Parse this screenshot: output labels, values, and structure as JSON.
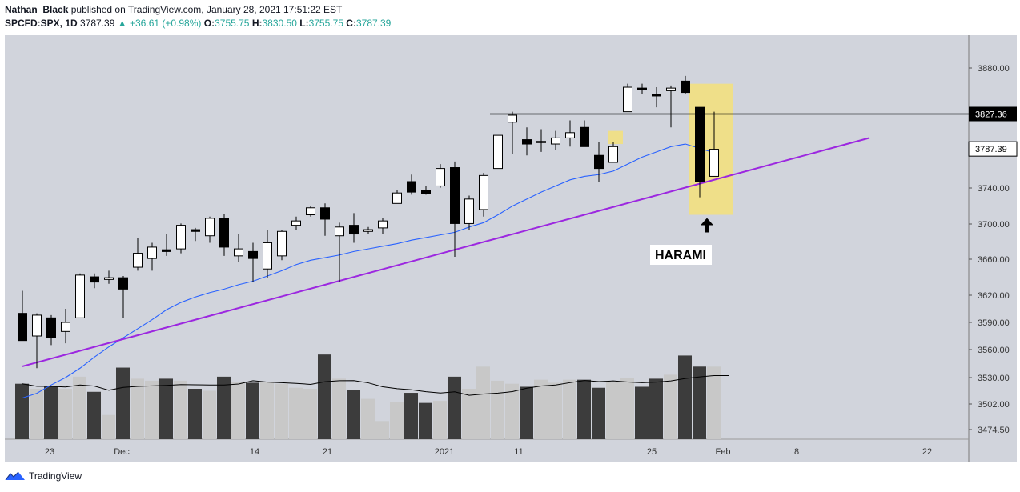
{
  "header": {
    "author": "Nathan_Black",
    "published": "published on TradingView.com, January 28, 2021 17:51:22 EST",
    "symbol": "SPCFD:SPX, 1D",
    "last": "3787.39",
    "change": "+36.61 (+0.98%)",
    "o_label": "O:",
    "o": "3755.75",
    "h_label": "H:",
    "h": "3830.50",
    "l_label": "L:",
    "l": "3755.75",
    "c_label": "C:",
    "c": "3787.39"
  },
  "footer": {
    "brand": "TradingView"
  },
  "annotation": {
    "label": "HARAMI"
  },
  "price_tags": {
    "resistance": "3827.36",
    "last": "3787.39"
  },
  "colors": {
    "plot_bg": "#d1d4dc",
    "up": "#ffffff",
    "down": "#000000",
    "trendline": "#9c27e0",
    "ma": "#2962ff",
    "highlight": "#f5e07a",
    "volume_up": "#c8c8c8",
    "volume_down": "#3c3c3c"
  },
  "chart_data": {
    "type": "candlestick",
    "y_ticks": [
      "3880.00",
      "3827.36",
      "3787.39",
      "3740.00",
      "3700.00",
      "3660.00",
      "3620.00",
      "3590.00",
      "3560.00",
      "3530.00",
      "3502.00",
      "3474.50"
    ],
    "x_ticks": [
      "23",
      "Dec",
      "14",
      "21",
      "2021",
      "11",
      "25",
      "Feb",
      "8",
      "22"
    ],
    "ylim": [
      3460,
      3905
    ],
    "candles": [
      {
        "o": 3600,
        "h": 3625,
        "l": 3570,
        "c": 3570
      },
      {
        "o": 3575,
        "h": 3600,
        "l": 3540,
        "c": 3598
      },
      {
        "o": 3595,
        "h": 3598,
        "l": 3565,
        "c": 3573
      },
      {
        "o": 3580,
        "h": 3605,
        "l": 3567,
        "c": 3590
      },
      {
        "o": 3595,
        "h": 3645,
        "l": 3595,
        "c": 3643
      },
      {
        "o": 3641,
        "h": 3645,
        "l": 3628,
        "c": 3635
      },
      {
        "o": 3638,
        "h": 3648,
        "l": 3633,
        "c": 3640
      },
      {
        "o": 3640,
        "h": 3642,
        "l": 3595,
        "c": 3627
      },
      {
        "o": 3652,
        "h": 3685,
        "l": 3648,
        "c": 3668
      },
      {
        "o": 3662,
        "h": 3680,
        "l": 3648,
        "c": 3675
      },
      {
        "o": 3672,
        "h": 3690,
        "l": 3665,
        "c": 3670
      },
      {
        "o": 3673,
        "h": 3702,
        "l": 3668,
        "c": 3700
      },
      {
        "o": 3695,
        "h": 3697,
        "l": 3682,
        "c": 3693
      },
      {
        "o": 3688,
        "h": 3710,
        "l": 3680,
        "c": 3708
      },
      {
        "o": 3708,
        "h": 3713,
        "l": 3665,
        "c": 3675
      },
      {
        "o": 3665,
        "h": 3690,
        "l": 3658,
        "c": 3673
      },
      {
        "o": 3670,
        "h": 3680,
        "l": 3635,
        "c": 3662
      },
      {
        "o": 3650,
        "h": 3695,
        "l": 3640,
        "c": 3680
      },
      {
        "o": 3665,
        "h": 3695,
        "l": 3660,
        "c": 3693
      },
      {
        "o": 3700,
        "h": 3710,
        "l": 3695,
        "c": 3705
      },
      {
        "o": 3712,
        "h": 3722,
        "l": 3710,
        "c": 3720
      },
      {
        "o": 3720,
        "h": 3725,
        "l": 3688,
        "c": 3707
      },
      {
        "o": 3688,
        "h": 3703,
        "l": 3635,
        "c": 3698
      },
      {
        "o": 3700,
        "h": 3714,
        "l": 3680,
        "c": 3690
      },
      {
        "o": 3693,
        "h": 3698,
        "l": 3690,
        "c": 3695
      },
      {
        "o": 3697,
        "h": 3708,
        "l": 3690,
        "c": 3705
      },
      {
        "o": 3725,
        "h": 3740,
        "l": 3725,
        "c": 3737
      },
      {
        "o": 3750,
        "h": 3758,
        "l": 3735,
        "c": 3738
      },
      {
        "o": 3740,
        "h": 3745,
        "l": 3735,
        "c": 3736
      },
      {
        "o": 3745,
        "h": 3770,
        "l": 3743,
        "c": 3765
      },
      {
        "o": 3766,
        "h": 3773,
        "l": 3664,
        "c": 3702
      },
      {
        "o": 3702,
        "h": 3734,
        "l": 3695,
        "c": 3730
      },
      {
        "o": 3718,
        "h": 3760,
        "l": 3710,
        "c": 3757
      },
      {
        "o": 3765,
        "h": 3803,
        "l": 3765,
        "c": 3803
      },
      {
        "o": 3818,
        "h": 3830,
        "l": 3782,
        "c": 3826
      },
      {
        "o": 3798,
        "h": 3812,
        "l": 3780,
        "c": 3793
      },
      {
        "o": 3795,
        "h": 3810,
        "l": 3784,
        "c": 3796
      },
      {
        "o": 3793,
        "h": 3808,
        "l": 3786,
        "c": 3800
      },
      {
        "o": 3800,
        "h": 3820,
        "l": 3790,
        "c": 3806
      },
      {
        "o": 3812,
        "h": 3820,
        "l": 3790,
        "c": 3790
      },
      {
        "o": 3780,
        "h": 3795,
        "l": 3750,
        "c": 3765
      },
      {
        "o": 3772,
        "h": 3795,
        "l": 3772,
        "c": 3790
      },
      {
        "o": 3830,
        "h": 3862,
        "l": 3830,
        "c": 3858
      },
      {
        "o": 3857,
        "h": 3862,
        "l": 3850,
        "c": 3856
      },
      {
        "o": 3850,
        "h": 3858,
        "l": 3835,
        "c": 3848
      },
      {
        "o": 3854,
        "h": 3860,
        "l": 3812,
        "c": 3857
      },
      {
        "o": 3865,
        "h": 3871,
        "l": 3850,
        "c": 3852
      },
      {
        "o": 3835,
        "h": 3835,
        "l": 3732,
        "c": 3750
      },
      {
        "o": 3756,
        "h": 3830,
        "l": 3756,
        "c": 3787
      }
    ],
    "volume": [
      0.55,
      0.5,
      0.52,
      0.5,
      0.62,
      0.47,
      0.24,
      0.71,
      0.6,
      0.58,
      0.6,
      0.58,
      0.5,
      0.48,
      0.62,
      0.57,
      0.56,
      0.57,
      0.55,
      0.51,
      0.5,
      0.84,
      0.6,
      0.49,
      0.4,
      0.18,
      0.37,
      0.46,
      0.36,
      0.38,
      0.62,
      0.5,
      0.72,
      0.58,
      0.55,
      0.52,
      0.59,
      0.56,
      0.59,
      0.59,
      0.51,
      0.57,
      0.61,
      0.52,
      0.6,
      0.64,
      0.83,
      0.72,
      0.72
    ],
    "ma": [
      3508,
      3513,
      3522,
      3530,
      3540,
      3552,
      3563,
      3573,
      3583,
      3593,
      3604,
      3612,
      3618,
      3623,
      3627,
      3632,
      3636,
      3642,
      3648,
      3655,
      3660,
      3663,
      3666,
      3670,
      3673,
      3676,
      3679,
      3683,
      3686,
      3689,
      3692,
      3698,
      3703,
      3712,
      3722,
      3730,
      3738,
      3745,
      3752,
      3756,
      3758,
      3762,
      3770,
      3778,
      3784,
      3790,
      3793,
      3788,
      3783
    ]
  }
}
